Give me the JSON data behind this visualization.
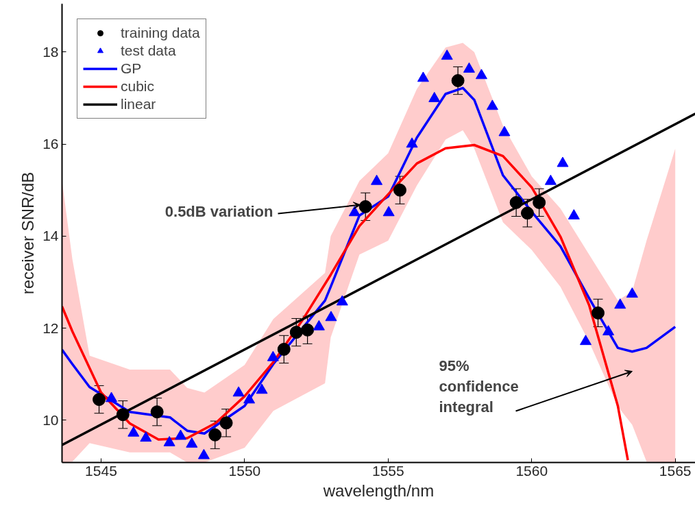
{
  "chart_data": {
    "type": "line",
    "xlabel": "wavelength/nm",
    "ylabel": "receiver SNR/dB",
    "xlim": [
      1543.64,
      1565.7
    ],
    "ylim": [
      9.08,
      19.05
    ],
    "xticks": [
      1545,
      1550,
      1555,
      1560,
      1565
    ],
    "yticks": [
      10,
      12,
      14,
      16,
      18
    ],
    "grid": false,
    "legend": "top left",
    "series": [
      {
        "name": "training data",
        "type": "scatter",
        "marker": "circle",
        "color": "#000000",
        "x": [
          1544.93,
          1545.76,
          1546.95,
          1548.97,
          1549.36,
          1551.37,
          1551.8,
          1552.19,
          1554.21,
          1555.41,
          1557.43,
          1559.46,
          1559.85,
          1560.26,
          1562.31
        ],
        "values": [
          10.45,
          10.12,
          10.18,
          9.68,
          9.94,
          11.54,
          11.91,
          11.96,
          14.64,
          15.0,
          17.38,
          14.73,
          14.5,
          14.73,
          12.33
        ],
        "errors": [
          0.3,
          0.3,
          0.3,
          0.3,
          0.3,
          0.3,
          0.3,
          0.3,
          0.3,
          0.3,
          0.3,
          0.3,
          0.3,
          0.3,
          0.3
        ]
      },
      {
        "name": "test data",
        "type": "scatter",
        "marker": "triangle",
        "color": "#0000ff",
        "x": [
          1545.36,
          1546.13,
          1546.56,
          1547.38,
          1547.77,
          1548.16,
          1548.58,
          1549.79,
          1550.16,
          1550.6,
          1550.99,
          1552.59,
          1553.01,
          1553.4,
          1553.83,
          1554.6,
          1555.02,
          1555.83,
          1556.22,
          1556.61,
          1557.05,
          1557.82,
          1558.25,
          1558.63,
          1559.05,
          1560.66,
          1561.08,
          1561.47,
          1561.88,
          1562.67,
          1563.08,
          1563.5
        ],
        "values": [
          10.47,
          9.72,
          9.61,
          9.51,
          9.65,
          9.48,
          9.23,
          10.59,
          10.44,
          10.65,
          11.36,
          12.03,
          12.23,
          12.57,
          14.51,
          15.19,
          14.51,
          16.0,
          17.43,
          16.99,
          17.91,
          17.63,
          17.49,
          16.82,
          16.25,
          15.19,
          15.58,
          14.44,
          11.71,
          11.92,
          12.5,
          12.74
        ]
      },
      {
        "name": "GP",
        "color": "#0000ff",
        "x": [
          1543.64,
          1544,
          1544.6,
          1546,
          1547.4,
          1548,
          1548.6,
          1550,
          1551,
          1552.8,
          1553,
          1554,
          1555,
          1556,
          1557,
          1557.6,
          1558,
          1559,
          1560,
          1561,
          1562,
          1563,
          1563.5,
          1564,
          1565
        ],
        "values": [
          11.53,
          11.22,
          10.72,
          10.18,
          10.06,
          9.77,
          9.71,
          10.31,
          11.22,
          12.6,
          12.9,
          14.45,
          14.86,
          16.14,
          17.09,
          17.22,
          16.96,
          15.32,
          14.53,
          13.78,
          12.65,
          11.57,
          11.49,
          11.57,
          12.03
        ],
        "lower": [
          9.08,
          9.1,
          9.5,
          9.3,
          9.3,
          9.08,
          9.08,
          9.4,
          10.2,
          10.8,
          11.8,
          13.6,
          13.9,
          15.1,
          16.1,
          16.3,
          15.9,
          14.3,
          13.7,
          12.9,
          11.7,
          10.3,
          9.9,
          9.1,
          9.08
        ],
        "upper": [
          15.2,
          13.5,
          11.4,
          11.1,
          11.1,
          10.7,
          10.6,
          11.2,
          12.2,
          13.2,
          14.0,
          15.2,
          15.8,
          17.2,
          18.1,
          18.2,
          18.0,
          16.4,
          15.3,
          14.6,
          13.6,
          12.6,
          12.8,
          13.9,
          15.9
        ]
      },
      {
        "name": "cubic",
        "color": "#ff0000",
        "x": [
          1543.64,
          1544,
          1545,
          1546,
          1547,
          1548,
          1549,
          1550,
          1551,
          1552,
          1553,
          1554,
          1555,
          1556,
          1557,
          1558,
          1559,
          1560,
          1561,
          1562,
          1563,
          1563.35
        ],
        "values": [
          12.47,
          11.93,
          10.6,
          9.93,
          9.58,
          9.61,
          9.94,
          10.52,
          11.26,
          12.16,
          13.16,
          14.22,
          14.91,
          15.58,
          15.91,
          15.98,
          15.74,
          15.06,
          13.99,
          12.5,
          10.31,
          9.13
        ]
      },
      {
        "name": "linear",
        "color": "#000000",
        "x": [
          1543.64,
          1565.7
        ],
        "values": [
          9.46,
          16.66
        ]
      }
    ],
    "annotations": [
      {
        "text": "0.5dB variation",
        "x": 1554.03,
        "y": 14.68
      },
      "95%\nconfidence\nintegral"
    ]
  }
}
